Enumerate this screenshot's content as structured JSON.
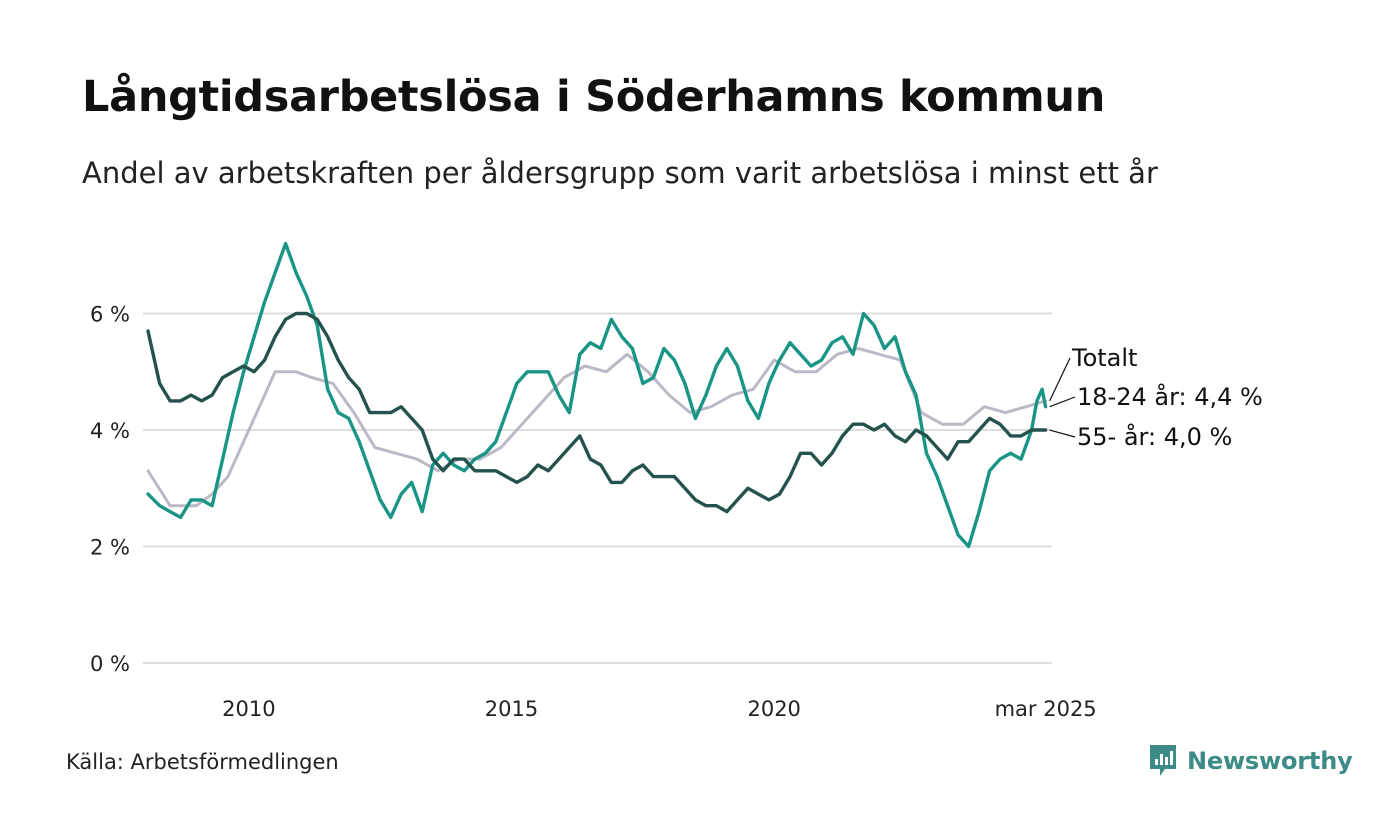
{
  "title": "Långtidsarbetslösa i Söderhamns kommun",
  "subtitle": "Andel av arbetskraften per åldersgrupp som varit arbetslösa i minst ett år",
  "source": "Källa: Arbetsförmedlingen",
  "brand": "Newsworthy",
  "colors": {
    "totalt": "#bdb8c6",
    "age_18_24": "#1a9585",
    "age_55": "#24524c",
    "grid": "#dedede",
    "brand": "#3d8b86"
  },
  "chart_data": {
    "type": "line",
    "x_label_ticks": [
      {
        "year": 2010,
        "label": "2010"
      },
      {
        "year": 2015,
        "label": "2015"
      },
      {
        "year": 2020,
        "label": "2020"
      },
      {
        "year": 2025.167,
        "label": "mar 2025"
      }
    ],
    "y_ticks": [
      {
        "value": 0,
        "label": "0 %"
      },
      {
        "value": 2,
        "label": "2 %"
      },
      {
        "value": 4,
        "label": "4 %"
      },
      {
        "value": 6,
        "label": "6 %"
      }
    ],
    "xlim": [
      2008.08,
      2025.25
    ],
    "ylim": [
      0,
      7.4
    ],
    "grid": true,
    "series": [
      {
        "id": "totalt",
        "name": "Totalt",
        "end_label": "Totalt",
        "color": "#bdb8c6",
        "points": [
          [
            2008.08,
            3.3
          ],
          [
            2008.5,
            2.7
          ],
          [
            2009.0,
            2.7
          ],
          [
            2009.3,
            2.9
          ],
          [
            2009.6,
            3.2
          ],
          [
            2009.9,
            3.8
          ],
          [
            2010.2,
            4.4
          ],
          [
            2010.5,
            5.0
          ],
          [
            2010.9,
            5.0
          ],
          [
            2011.2,
            4.9
          ],
          [
            2011.6,
            4.8
          ],
          [
            2012.0,
            4.3
          ],
          [
            2012.4,
            3.7
          ],
          [
            2012.8,
            3.6
          ],
          [
            2013.2,
            3.5
          ],
          [
            2013.6,
            3.3
          ],
          [
            2014.0,
            3.5
          ],
          [
            2014.4,
            3.5
          ],
          [
            2014.8,
            3.7
          ],
          [
            2015.2,
            4.1
          ],
          [
            2015.6,
            4.5
          ],
          [
            2016.0,
            4.9
          ],
          [
            2016.4,
            5.1
          ],
          [
            2016.8,
            5.0
          ],
          [
            2017.2,
            5.3
          ],
          [
            2017.6,
            5.0
          ],
          [
            2018.0,
            4.6
          ],
          [
            2018.4,
            4.3
          ],
          [
            2018.8,
            4.4
          ],
          [
            2019.2,
            4.6
          ],
          [
            2019.6,
            4.7
          ],
          [
            2020.0,
            5.2
          ],
          [
            2020.4,
            5.0
          ],
          [
            2020.8,
            5.0
          ],
          [
            2021.2,
            5.3
          ],
          [
            2021.6,
            5.4
          ],
          [
            2022.0,
            5.3
          ],
          [
            2022.4,
            5.2
          ],
          [
            2022.8,
            4.3
          ],
          [
            2023.2,
            4.1
          ],
          [
            2023.6,
            4.1
          ],
          [
            2024.0,
            4.4
          ],
          [
            2024.4,
            4.3
          ],
          [
            2024.8,
            4.4
          ],
          [
            2025.167,
            4.5
          ]
        ]
      },
      {
        "id": "age_18_24",
        "name": "18-24 år",
        "end_label": "18-24 år: 4,4 %",
        "color": "#1a9585",
        "points": [
          [
            2008.08,
            2.9
          ],
          [
            2008.3,
            2.7
          ],
          [
            2008.5,
            2.6
          ],
          [
            2008.7,
            2.5
          ],
          [
            2008.9,
            2.8
          ],
          [
            2009.1,
            2.8
          ],
          [
            2009.3,
            2.7
          ],
          [
            2009.5,
            3.5
          ],
          [
            2009.7,
            4.3
          ],
          [
            2009.9,
            5.0
          ],
          [
            2010.1,
            5.6
          ],
          [
            2010.3,
            6.2
          ],
          [
            2010.5,
            6.7
          ],
          [
            2010.7,
            7.2
          ],
          [
            2010.9,
            6.7
          ],
          [
            2011.1,
            6.3
          ],
          [
            2011.3,
            5.8
          ],
          [
            2011.5,
            4.7
          ],
          [
            2011.7,
            4.3
          ],
          [
            2011.9,
            4.2
          ],
          [
            2012.1,
            3.8
          ],
          [
            2012.3,
            3.3
          ],
          [
            2012.5,
            2.8
          ],
          [
            2012.7,
            2.5
          ],
          [
            2012.9,
            2.9
          ],
          [
            2013.1,
            3.1
          ],
          [
            2013.3,
            2.6
          ],
          [
            2013.5,
            3.4
          ],
          [
            2013.7,
            3.6
          ],
          [
            2013.9,
            3.4
          ],
          [
            2014.1,
            3.3
          ],
          [
            2014.3,
            3.5
          ],
          [
            2014.5,
            3.6
          ],
          [
            2014.7,
            3.8
          ],
          [
            2014.9,
            4.3
          ],
          [
            2015.1,
            4.8
          ],
          [
            2015.3,
            5.0
          ],
          [
            2015.5,
            5.0
          ],
          [
            2015.7,
            5.0
          ],
          [
            2015.9,
            4.6
          ],
          [
            2016.1,
            4.3
          ],
          [
            2016.3,
            5.3
          ],
          [
            2016.5,
            5.5
          ],
          [
            2016.7,
            5.4
          ],
          [
            2016.9,
            5.9
          ],
          [
            2017.1,
            5.6
          ],
          [
            2017.3,
            5.4
          ],
          [
            2017.5,
            4.8
          ],
          [
            2017.7,
            4.9
          ],
          [
            2017.9,
            5.4
          ],
          [
            2018.1,
            5.2
          ],
          [
            2018.3,
            4.8
          ],
          [
            2018.5,
            4.2
          ],
          [
            2018.7,
            4.6
          ],
          [
            2018.9,
            5.1
          ],
          [
            2019.1,
            5.4
          ],
          [
            2019.3,
            5.1
          ],
          [
            2019.5,
            4.5
          ],
          [
            2019.7,
            4.2
          ],
          [
            2019.9,
            4.8
          ],
          [
            2020.1,
            5.2
          ],
          [
            2020.3,
            5.5
          ],
          [
            2020.5,
            5.3
          ],
          [
            2020.7,
            5.1
          ],
          [
            2020.9,
            5.2
          ],
          [
            2021.1,
            5.5
          ],
          [
            2021.3,
            5.6
          ],
          [
            2021.5,
            5.3
          ],
          [
            2021.7,
            6.0
          ],
          [
            2021.9,
            5.8
          ],
          [
            2022.1,
            5.4
          ],
          [
            2022.3,
            5.6
          ],
          [
            2022.5,
            5.0
          ],
          [
            2022.7,
            4.6
          ],
          [
            2022.9,
            3.6
          ],
          [
            2023.1,
            3.2
          ],
          [
            2023.3,
            2.7
          ],
          [
            2023.5,
            2.2
          ],
          [
            2023.7,
            2.0
          ],
          [
            2023.9,
            2.6
          ],
          [
            2024.1,
            3.3
          ],
          [
            2024.3,
            3.5
          ],
          [
            2024.5,
            3.6
          ],
          [
            2024.7,
            3.5
          ],
          [
            2024.9,
            4.0
          ],
          [
            2025.0,
            4.5
          ],
          [
            2025.1,
            4.7
          ],
          [
            2025.167,
            4.4
          ]
        ]
      },
      {
        "id": "age_55",
        "name": "55- år",
        "end_label": "55- år: 4,0 %",
        "color": "#24524c",
        "points": [
          [
            2008.08,
            5.7
          ],
          [
            2008.3,
            4.8
          ],
          [
            2008.5,
            4.5
          ],
          [
            2008.7,
            4.5
          ],
          [
            2008.9,
            4.6
          ],
          [
            2009.1,
            4.5
          ],
          [
            2009.3,
            4.6
          ],
          [
            2009.5,
            4.9
          ],
          [
            2009.7,
            5.0
          ],
          [
            2009.9,
            5.1
          ],
          [
            2010.1,
            5.0
          ],
          [
            2010.3,
            5.2
          ],
          [
            2010.5,
            5.6
          ],
          [
            2010.7,
            5.9
          ],
          [
            2010.9,
            6.0
          ],
          [
            2011.1,
            6.0
          ],
          [
            2011.3,
            5.9
          ],
          [
            2011.5,
            5.6
          ],
          [
            2011.7,
            5.2
          ],
          [
            2011.9,
            4.9
          ],
          [
            2012.1,
            4.7
          ],
          [
            2012.3,
            4.3
          ],
          [
            2012.5,
            4.3
          ],
          [
            2012.7,
            4.3
          ],
          [
            2012.9,
            4.4
          ],
          [
            2013.1,
            4.2
          ],
          [
            2013.3,
            4.0
          ],
          [
            2013.5,
            3.5
          ],
          [
            2013.7,
            3.3
          ],
          [
            2013.9,
            3.5
          ],
          [
            2014.1,
            3.5
          ],
          [
            2014.3,
            3.3
          ],
          [
            2014.5,
            3.3
          ],
          [
            2014.7,
            3.3
          ],
          [
            2014.9,
            3.2
          ],
          [
            2015.1,
            3.1
          ],
          [
            2015.3,
            3.2
          ],
          [
            2015.5,
            3.4
          ],
          [
            2015.7,
            3.3
          ],
          [
            2015.9,
            3.5
          ],
          [
            2016.1,
            3.7
          ],
          [
            2016.3,
            3.9
          ],
          [
            2016.5,
            3.5
          ],
          [
            2016.7,
            3.4
          ],
          [
            2016.9,
            3.1
          ],
          [
            2017.1,
            3.1
          ],
          [
            2017.3,
            3.3
          ],
          [
            2017.5,
            3.4
          ],
          [
            2017.7,
            3.2
          ],
          [
            2017.9,
            3.2
          ],
          [
            2018.1,
            3.2
          ],
          [
            2018.3,
            3.0
          ],
          [
            2018.5,
            2.8
          ],
          [
            2018.7,
            2.7
          ],
          [
            2018.9,
            2.7
          ],
          [
            2019.1,
            2.6
          ],
          [
            2019.3,
            2.8
          ],
          [
            2019.5,
            3.0
          ],
          [
            2019.7,
            2.9
          ],
          [
            2019.9,
            2.8
          ],
          [
            2020.1,
            2.9
          ],
          [
            2020.3,
            3.2
          ],
          [
            2020.5,
            3.6
          ],
          [
            2020.7,
            3.6
          ],
          [
            2020.9,
            3.4
          ],
          [
            2021.1,
            3.6
          ],
          [
            2021.3,
            3.9
          ],
          [
            2021.5,
            4.1
          ],
          [
            2021.7,
            4.1
          ],
          [
            2021.9,
            4.0
          ],
          [
            2022.1,
            4.1
          ],
          [
            2022.3,
            3.9
          ],
          [
            2022.5,
            3.8
          ],
          [
            2022.7,
            4.0
          ],
          [
            2022.9,
            3.9
          ],
          [
            2023.1,
            3.7
          ],
          [
            2023.3,
            3.5
          ],
          [
            2023.5,
            3.8
          ],
          [
            2023.7,
            3.8
          ],
          [
            2023.9,
            4.0
          ],
          [
            2024.1,
            4.2
          ],
          [
            2024.3,
            4.1
          ],
          [
            2024.5,
            3.9
          ],
          [
            2024.7,
            3.9
          ],
          [
            2024.9,
            4.0
          ],
          [
            2025.0,
            4.0
          ],
          [
            2025.167,
            4.0
          ]
        ]
      }
    ]
  }
}
